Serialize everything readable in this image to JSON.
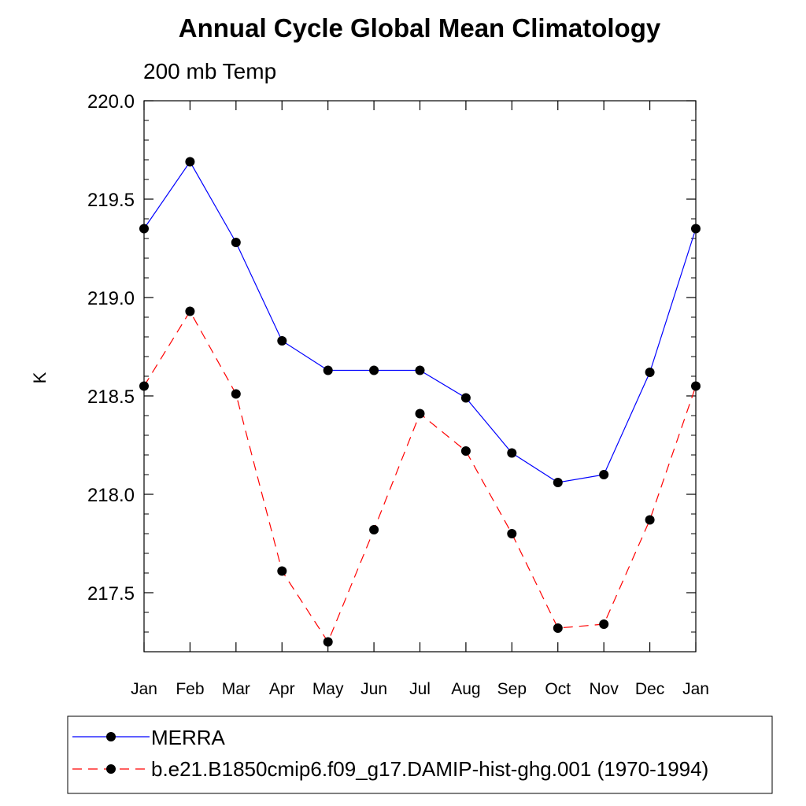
{
  "chart_data": {
    "type": "line",
    "title": "Annual Cycle Global Mean Climatology",
    "subtitle": "200 mb Temp",
    "xlabel": "",
    "ylabel": "K",
    "categories": [
      "Jan",
      "Feb",
      "Mar",
      "Apr",
      "May",
      "Jun",
      "Jul",
      "Aug",
      "Sep",
      "Oct",
      "Nov",
      "Dec",
      "Jan"
    ],
    "ylim": [
      217.2,
      220.0
    ],
    "yticks": [
      217.5,
      218.0,
      218.5,
      219.0,
      219.5,
      220.0
    ],
    "ytick_labels": [
      "217.5",
      "218.0",
      "218.5",
      "219.0",
      "219.5",
      "220.0"
    ],
    "grid": false,
    "legend_position": "bottom",
    "series": [
      {
        "name": "MERRA",
        "color": "#0000ff",
        "dash": "solid",
        "marker": "filled-circle",
        "values": [
          219.35,
          219.69,
          219.28,
          218.78,
          218.63,
          218.63,
          218.63,
          218.49,
          218.21,
          218.06,
          218.1,
          218.62,
          219.35
        ]
      },
      {
        "name": "b.e21.B1850cmip6.f09_g17.DAMIP-hist-ghg.001 (1970-1994)",
        "color": "#ff0000",
        "dash": "dashed",
        "marker": "filled-circle",
        "values": [
          218.55,
          218.93,
          218.51,
          217.61,
          217.25,
          217.82,
          218.41,
          218.22,
          217.8,
          217.32,
          217.34,
          217.87,
          218.55
        ]
      }
    ]
  }
}
